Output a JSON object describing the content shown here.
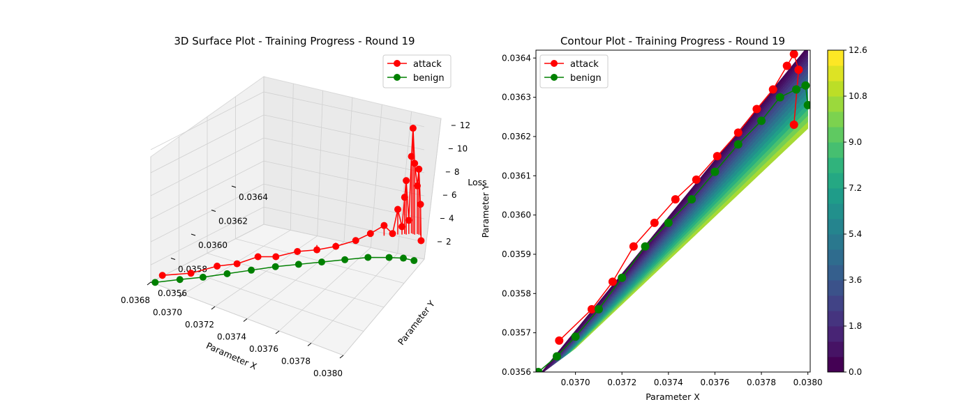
{
  "chart_data": [
    {
      "type": "surface3d",
      "title": "3D Surface Plot - Training Progress - Round 19",
      "xlabel": "Parameter X",
      "ylabel": "Parameter Y",
      "zlabel": "Loss",
      "xlim": [
        0.0368,
        0.038
      ],
      "ylim": [
        0.0356,
        0.0364
      ],
      "zlim": [
        0.5,
        12.6
      ],
      "xticks": [
        "0.0368",
        "0.0370",
        "0.0372",
        "0.0374",
        "0.0376",
        "0.0378",
        "0.0380"
      ],
      "yticks": [
        "0.0356",
        "0.0358",
        "0.0360",
        "0.0362",
        "0.0364"
      ],
      "zticks": [
        "2",
        "4",
        "6",
        "8",
        "10",
        "12"
      ],
      "legend": {
        "placement": "top-right",
        "entries": [
          "attack",
          "benign"
        ]
      },
      "series": [
        {
          "name": "attack",
          "color": "#ff0000",
          "marker": "circle",
          "points": [
            {
              "x": 0.03686,
              "y": 0.03562,
              "z": 1.2
            },
            {
              "x": 0.037,
              "y": 0.03568,
              "z": 1.5
            },
            {
              "x": 0.0371,
              "y": 0.03578,
              "z": 1.6
            },
            {
              "x": 0.03718,
              "y": 0.03585,
              "z": 1.5
            },
            {
              "x": 0.03726,
              "y": 0.03593,
              "z": 1.7
            },
            {
              "x": 0.03734,
              "y": 0.03598,
              "z": 1.6
            },
            {
              "x": 0.03743,
              "y": 0.03605,
              "z": 1.8
            },
            {
              "x": 0.03752,
              "y": 0.0361,
              "z": 1.9
            },
            {
              "x": 0.0376,
              "y": 0.03616,
              "z": 2.0
            },
            {
              "x": 0.03768,
              "y": 0.03623,
              "z": 2.2
            },
            {
              "x": 0.03774,
              "y": 0.03628,
              "z": 2.6
            },
            {
              "x": 0.0378,
              "y": 0.03632,
              "z": 3.2
            },
            {
              "x": 0.03784,
              "y": 0.03634,
              "z": 2.5
            },
            {
              "x": 0.03786,
              "y": 0.03636,
              "z": 4.5
            },
            {
              "x": 0.03788,
              "y": 0.03637,
              "z": 3.0
            },
            {
              "x": 0.03789,
              "y": 0.03638,
              "z": 5.5
            },
            {
              "x": 0.0379,
              "y": 0.03638,
              "z": 7.0
            },
            {
              "x": 0.03791,
              "y": 0.03639,
              "z": 3.5
            },
            {
              "x": 0.03792,
              "y": 0.0364,
              "z": 9.0
            },
            {
              "x": 0.03793,
              "y": 0.0364,
              "z": 11.5
            },
            {
              "x": 0.03794,
              "y": 0.0364,
              "z": 8.5
            },
            {
              "x": 0.03795,
              "y": 0.03641,
              "z": 6.5
            },
            {
              "x": 0.03796,
              "y": 0.03641,
              "z": 8.0
            },
            {
              "x": 0.03797,
              "y": 0.03641,
              "z": 5.0
            },
            {
              "x": 0.03798,
              "y": 0.0364,
              "z": 2.0
            }
          ]
        },
        {
          "name": "benign",
          "color": "#008000",
          "marker": "circle",
          "points": [
            {
              "x": 0.03684,
              "y": 0.03558,
              "z": 0.9
            },
            {
              "x": 0.03695,
              "y": 0.03565,
              "z": 1.0
            },
            {
              "x": 0.03705,
              "y": 0.03572,
              "z": 1.0
            },
            {
              "x": 0.03715,
              "y": 0.0358,
              "z": 1.0
            },
            {
              "x": 0.03725,
              "y": 0.03588,
              "z": 1.0
            },
            {
              "x": 0.03735,
              "y": 0.03596,
              "z": 1.0
            },
            {
              "x": 0.03745,
              "y": 0.03603,
              "z": 1.0
            },
            {
              "x": 0.03755,
              "y": 0.0361,
              "z": 1.0
            },
            {
              "x": 0.03765,
              "y": 0.03617,
              "z": 1.0
            },
            {
              "x": 0.03775,
              "y": 0.03624,
              "z": 1.0
            },
            {
              "x": 0.03785,
              "y": 0.03629,
              "z": 1.0
            },
            {
              "x": 0.03792,
              "y": 0.03632,
              "z": 1.0
            },
            {
              "x": 0.03798,
              "y": 0.03633,
              "z": 1.0
            }
          ]
        }
      ]
    },
    {
      "type": "contour",
      "title": "Contour Plot - Training Progress - Round 19",
      "xlabel": "Parameter X",
      "ylabel": "Parameter Y",
      "xlim": [
        0.03683,
        0.03801
      ],
      "ylim": [
        0.0356,
        0.03642
      ],
      "xticks": [
        "0.0370",
        "0.0372",
        "0.0374",
        "0.0376",
        "0.0378",
        "0.0380"
      ],
      "yticks": [
        "0.0356",
        "0.0357",
        "0.0358",
        "0.0359",
        "0.0360",
        "0.0361",
        "0.0362",
        "0.0363",
        "0.0364"
      ],
      "legend": {
        "placement": "top-left",
        "entries": [
          "attack",
          "benign"
        ]
      },
      "colorbar": {
        "min": 0.0,
        "max": 12.6,
        "levels": 21,
        "ticks": [
          "0.0",
          "1.8",
          "3.6",
          "5.4",
          "7.2",
          "9.0",
          "10.8",
          "12.6"
        ],
        "colormap": "viridis"
      },
      "series": [
        {
          "name": "attack",
          "color": "#ff0000",
          "marker": "circle",
          "points": [
            {
              "x": 0.03693,
              "y": 0.03568
            },
            {
              "x": 0.03707,
              "y": 0.03576
            },
            {
              "x": 0.03716,
              "y": 0.03583
            },
            {
              "x": 0.03725,
              "y": 0.03592
            },
            {
              "x": 0.03734,
              "y": 0.03598
            },
            {
              "x": 0.03743,
              "y": 0.03604
            },
            {
              "x": 0.03752,
              "y": 0.03609
            },
            {
              "x": 0.03761,
              "y": 0.03615
            },
            {
              "x": 0.0377,
              "y": 0.03621
            },
            {
              "x": 0.03778,
              "y": 0.03627
            },
            {
              "x": 0.03785,
              "y": 0.03632
            },
            {
              "x": 0.03791,
              "y": 0.03638
            },
            {
              "x": 0.03794,
              "y": 0.03641
            },
            {
              "x": 0.03796,
              "y": 0.03637
            },
            {
              "x": 0.03794,
              "y": 0.03623
            }
          ]
        },
        {
          "name": "benign",
          "color": "#008000",
          "marker": "circle",
          "points": [
            {
              "x": 0.03684,
              "y": 0.0356
            },
            {
              "x": 0.03692,
              "y": 0.03564
            },
            {
              "x": 0.037,
              "y": 0.03569
            },
            {
              "x": 0.0371,
              "y": 0.03576
            },
            {
              "x": 0.0372,
              "y": 0.03584
            },
            {
              "x": 0.0373,
              "y": 0.03592
            },
            {
              "x": 0.0374,
              "y": 0.03598
            },
            {
              "x": 0.0375,
              "y": 0.03604
            },
            {
              "x": 0.0376,
              "y": 0.03611
            },
            {
              "x": 0.0377,
              "y": 0.03618
            },
            {
              "x": 0.0378,
              "y": 0.03624
            },
            {
              "x": 0.03788,
              "y": 0.0363
            },
            {
              "x": 0.03795,
              "y": 0.03632
            },
            {
              "x": 0.03799,
              "y": 0.03633
            },
            {
              "x": 0.038,
              "y": 0.03628
            }
          ]
        }
      ]
    }
  ]
}
